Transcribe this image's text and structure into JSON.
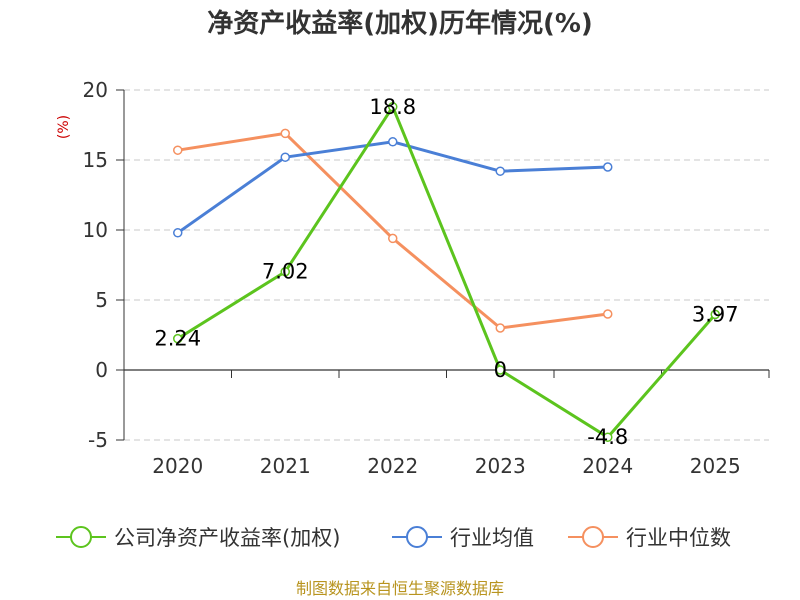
{
  "chart_data": {
    "type": "line",
    "title": "净资产收益率(加权)历年情况(%)",
    "ylabel": "(%)",
    "categories": [
      "2020",
      "2021",
      "2022",
      "2023",
      "2024",
      "2025"
    ],
    "ylim": [
      -5,
      20
    ],
    "yticks": [
      -5,
      0,
      5,
      10,
      15,
      20
    ],
    "grid": true,
    "legend_position": "bottom",
    "series": [
      {
        "name": "公司净资产收益率(加权)",
        "color": "#5cc41e",
        "values": [
          2.24,
          7.02,
          18.8,
          0,
          -4.8,
          3.97
        ],
        "labels": [
          "2.24",
          "7.02",
          "18.8",
          "0",
          "-4.8",
          "3.97"
        ]
      },
      {
        "name": "行业均值",
        "color": "#4a7fd6",
        "values": [
          9.8,
          15.2,
          16.3,
          14.2,
          14.5,
          null
        ]
      },
      {
        "name": "行业中位数",
        "color": "#f5905f",
        "values": [
          15.7,
          16.9,
          9.4,
          3.0,
          4.0,
          null
        ]
      }
    ]
  },
  "footer": {
    "source": "制图数据来自恒生聚源数据库"
  }
}
